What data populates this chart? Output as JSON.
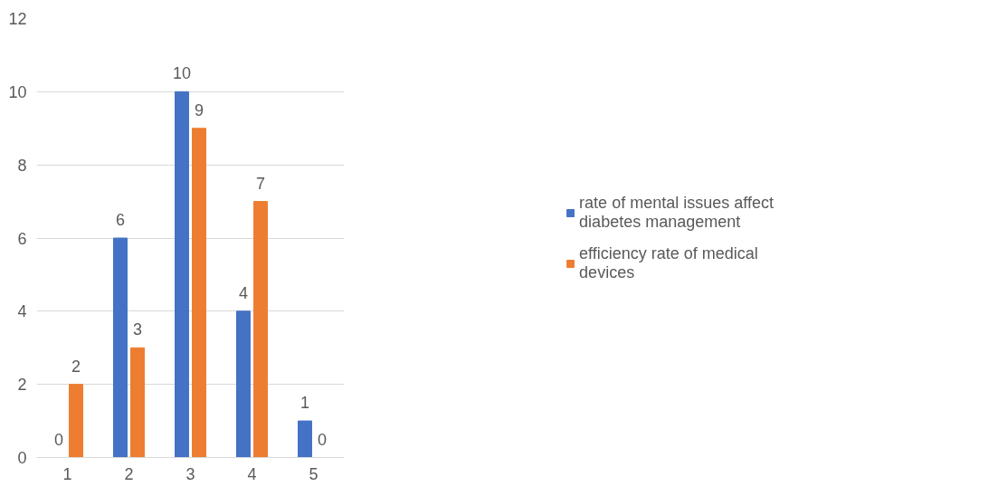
{
  "chart_data": {
    "type": "bar",
    "categories": [
      "1",
      "2",
      "3",
      "4",
      "5"
    ],
    "series": [
      {
        "name": "rate of mental issues affect diabetes management",
        "color": "#4472c4",
        "values": [
          0,
          6,
          10,
          4,
          1
        ]
      },
      {
        "name": "efficiency rate of medical devices",
        "color": "#ed7d31",
        "values": [
          2,
          3,
          9,
          7,
          0
        ]
      }
    ],
    "ylim": [
      0,
      12
    ],
    "yticks": [
      0,
      2,
      4,
      6,
      8,
      10,
      12
    ],
    "grid": "y",
    "legend": "right",
    "data_labels": true
  }
}
